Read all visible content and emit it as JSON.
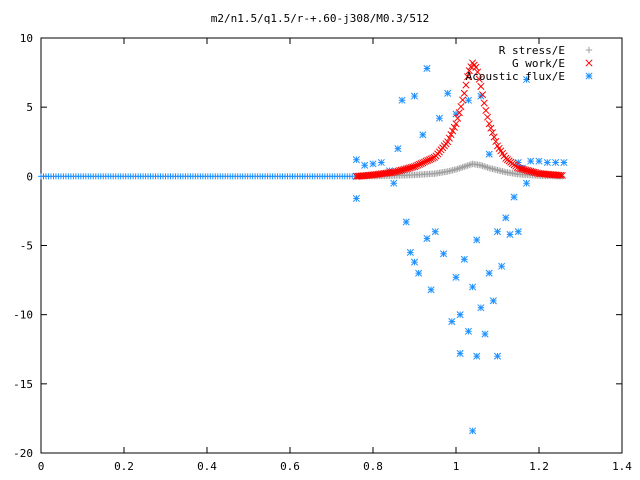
{
  "chart_data": {
    "type": "scatter",
    "title": "m2/n1.5/q1.5/r-+.60-j308/M0.3/512",
    "xlabel": "",
    "ylabel": "",
    "xlim": [
      0,
      1.4
    ],
    "ylim": [
      -20,
      10
    ],
    "x_ticks": [
      {
        "value": 0,
        "label": "0"
      },
      {
        "value": 0.2,
        "label": "0.2"
      },
      {
        "value": 0.4,
        "label": "0.4"
      },
      {
        "value": 0.6,
        "label": "0.6"
      },
      {
        "value": 0.8,
        "label": "0.8"
      },
      {
        "value": 1.0,
        "label": "1"
      },
      {
        "value": 1.2,
        "label": "1.2"
      },
      {
        "value": 1.4,
        "label": "1.4"
      }
    ],
    "y_ticks": [
      {
        "value": 10,
        "label": "10"
      },
      {
        "value": 5,
        "label": "5"
      },
      {
        "value": 0,
        "label": "0"
      },
      {
        "value": -5,
        "label": "-5"
      },
      {
        "value": -10,
        "label": "-10"
      },
      {
        "value": -15,
        "label": "-15"
      },
      {
        "value": -20,
        "label": "-20"
      }
    ],
    "grid": false,
    "legend_position": "top-right",
    "series": [
      {
        "name": "R stress/E",
        "marker": "plus",
        "color": "#a0a0a0",
        "x_range": [
          0.76,
          1.26
        ],
        "y_description": "near zero, small bump to about 0.9 around x=1.05",
        "points": [
          [
            0.76,
            0.0
          ],
          [
            0.8,
            0.02
          ],
          [
            0.85,
            0.05
          ],
          [
            0.9,
            0.1
          ],
          [
            0.95,
            0.2
          ],
          [
            0.98,
            0.35
          ],
          [
            1.0,
            0.5
          ],
          [
            1.02,
            0.7
          ],
          [
            1.04,
            0.9
          ],
          [
            1.06,
            0.8
          ],
          [
            1.08,
            0.6
          ],
          [
            1.1,
            0.45
          ],
          [
            1.12,
            0.3
          ],
          [
            1.15,
            0.15
          ],
          [
            1.2,
            0.05
          ],
          [
            1.26,
            0.0
          ]
        ]
      },
      {
        "name": "G work/E",
        "marker": "cross",
        "color": "#ff0000",
        "x_range": [
          0.76,
          1.26
        ],
        "y_description": "sharp resonance peak about 8.2 at x about 1.04",
        "points": [
          [
            0.76,
            0.0
          ],
          [
            0.8,
            0.1
          ],
          [
            0.85,
            0.3
          ],
          [
            0.9,
            0.7
          ],
          [
            0.95,
            1.4
          ],
          [
            0.98,
            2.5
          ],
          [
            1.0,
            3.8
          ],
          [
            1.01,
            4.8
          ],
          [
            1.02,
            6.0
          ],
          [
            1.03,
            7.5
          ],
          [
            1.04,
            8.2
          ],
          [
            1.05,
            7.8
          ],
          [
            1.06,
            6.5
          ],
          [
            1.07,
            5.0
          ],
          [
            1.08,
            3.8
          ],
          [
            1.1,
            2.2
          ],
          [
            1.12,
            1.3
          ],
          [
            1.15,
            0.6
          ],
          [
            1.2,
            0.2
          ],
          [
            1.26,
            0.05
          ]
        ]
      },
      {
        "name": "Acoustic flux/E",
        "marker": "star",
        "color": "#1e90ff",
        "x_range": [
          0.0,
          1.26
        ],
        "y_description": "zero for x below 0.76, scattered between -18.4 and 7.8 near the resonance, about 1 for x above 1.15",
        "points": [
          [
            0.76,
            1.2
          ],
          [
            0.76,
            -1.6
          ],
          [
            0.78,
            0.8
          ],
          [
            0.8,
            0.9
          ],
          [
            0.82,
            1.0
          ],
          [
            0.84,
            0.4
          ],
          [
            0.85,
            -0.5
          ],
          [
            0.86,
            2.0
          ],
          [
            0.87,
            5.5
          ],
          [
            0.88,
            -3.3
          ],
          [
            0.89,
            -5.5
          ],
          [
            0.9,
            -6.2
          ],
          [
            0.9,
            5.8
          ],
          [
            0.91,
            -7.0
          ],
          [
            0.92,
            3.0
          ],
          [
            0.93,
            7.8
          ],
          [
            0.93,
            -4.5
          ],
          [
            0.94,
            -8.2
          ],
          [
            0.95,
            -4.0
          ],
          [
            0.96,
            4.2
          ],
          [
            0.97,
            -5.6
          ],
          [
            0.98,
            6.0
          ],
          [
            0.99,
            -10.5
          ],
          [
            1.0,
            -7.3
          ],
          [
            1.0,
            4.5
          ],
          [
            1.01,
            -12.8
          ],
          [
            1.01,
            -10.0
          ],
          [
            1.02,
            -6.0
          ],
          [
            1.03,
            -11.2
          ],
          [
            1.03,
            5.5
          ],
          [
            1.04,
            -8.0
          ],
          [
            1.04,
            -18.4
          ],
          [
            1.05,
            -13.0
          ],
          [
            1.05,
            -4.6
          ],
          [
            1.06,
            -9.5
          ],
          [
            1.06,
            5.8
          ],
          [
            1.07,
            -11.4
          ],
          [
            1.08,
            -7.0
          ],
          [
            1.08,
            1.6
          ],
          [
            1.09,
            -9.0
          ],
          [
            1.1,
            -13.0
          ],
          [
            1.1,
            -4.0
          ],
          [
            1.11,
            -6.5
          ],
          [
            1.12,
            -3.0
          ],
          [
            1.13,
            -4.2
          ],
          [
            1.14,
            -1.5
          ],
          [
            1.15,
            1.0
          ],
          [
            1.15,
            -4.0
          ],
          [
            1.16,
            0.6
          ],
          [
            1.17,
            7.0
          ],
          [
            1.17,
            -0.5
          ],
          [
            1.18,
            1.1
          ],
          [
            1.2,
            1.1
          ],
          [
            1.22,
            1.0
          ],
          [
            1.24,
            1.0
          ],
          [
            1.26,
            1.0
          ]
        ]
      }
    ]
  }
}
